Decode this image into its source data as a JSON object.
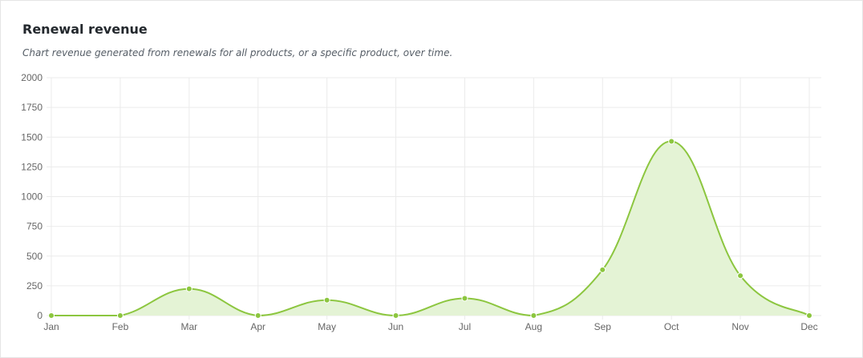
{
  "card": {
    "title": "Renewal revenue",
    "description": "Chart revenue generated from renewals for all products, or a specific product, over time."
  },
  "colors": {
    "line": "#8cc63f",
    "fill": "#e4f3d5",
    "grid": "#ebebeb",
    "tick_text": "#666666"
  },
  "chart_data": {
    "type": "area",
    "title": "",
    "xlabel": "",
    "ylabel": "",
    "categories": [
      "Jan",
      "Feb",
      "Mar",
      "Apr",
      "May",
      "Jun",
      "Jul",
      "Aug",
      "Sep",
      "Oct",
      "Nov",
      "Dec"
    ],
    "series": [
      {
        "values": [
          0,
          0,
          225,
          0,
          130,
          0,
          145,
          0,
          385,
          1465,
          335,
          0
        ]
      }
    ],
    "ylim": [
      0,
      2000
    ],
    "yticks": [
      0,
      250,
      500,
      750,
      1000,
      1250,
      1500,
      1750,
      2000
    ],
    "grid": true,
    "legend": "none",
    "smooth": true
  }
}
